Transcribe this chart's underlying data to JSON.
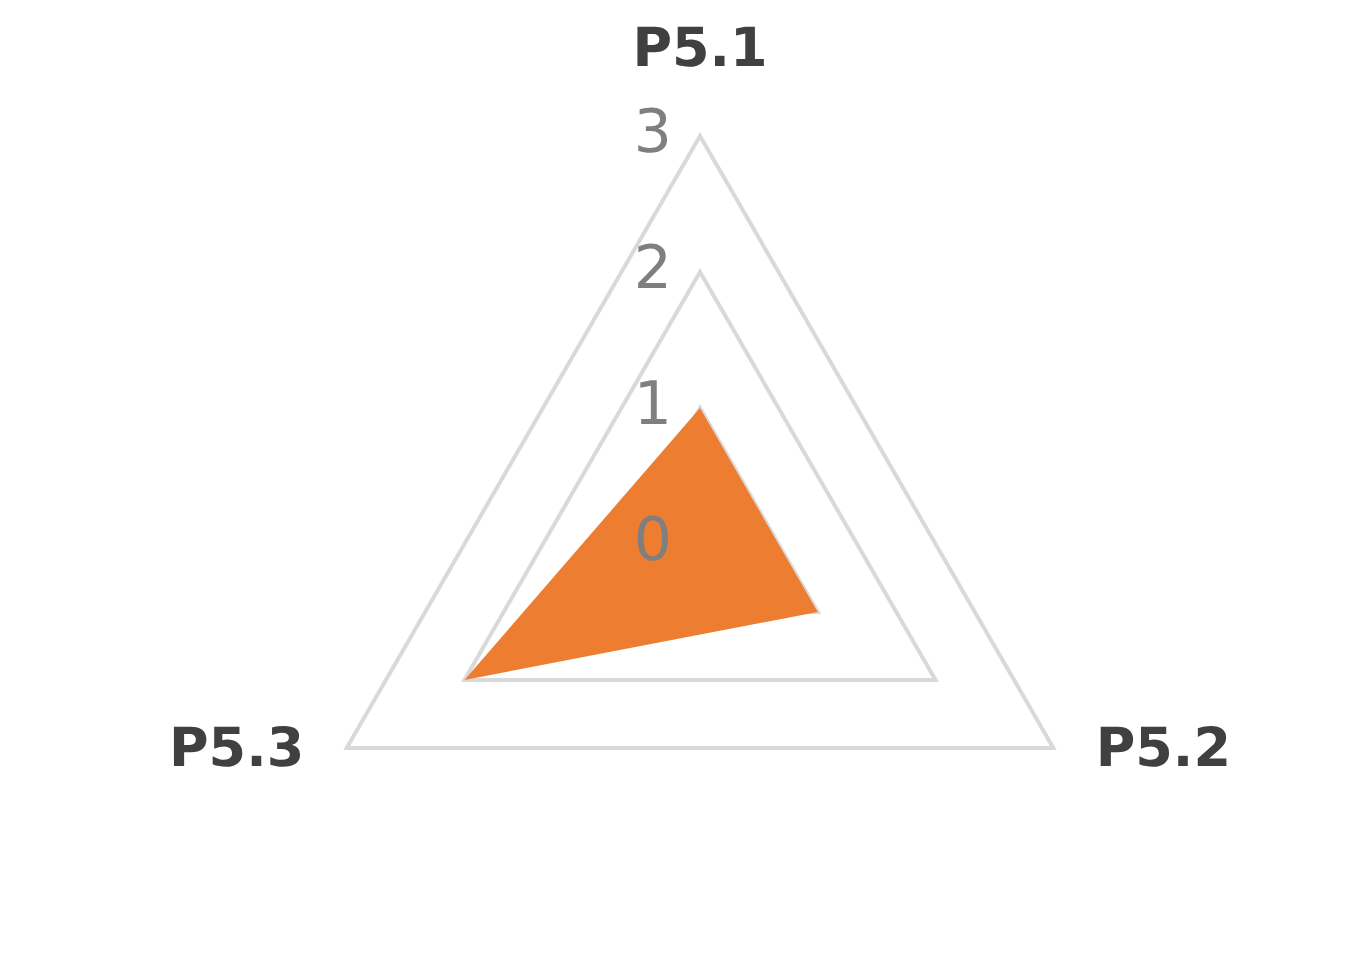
{
  "chart_data": {
    "type": "radar",
    "categories": [
      "P5.1",
      "P5.2",
      "P5.3"
    ],
    "series": [
      {
        "color": "#ed7d31",
        "values": [
          1,
          1,
          2
        ]
      }
    ],
    "ylim": [
      0,
      3
    ],
    "yticks": [
      0,
      1,
      2,
      3
    ],
    "grid": true,
    "marker": "none"
  }
}
